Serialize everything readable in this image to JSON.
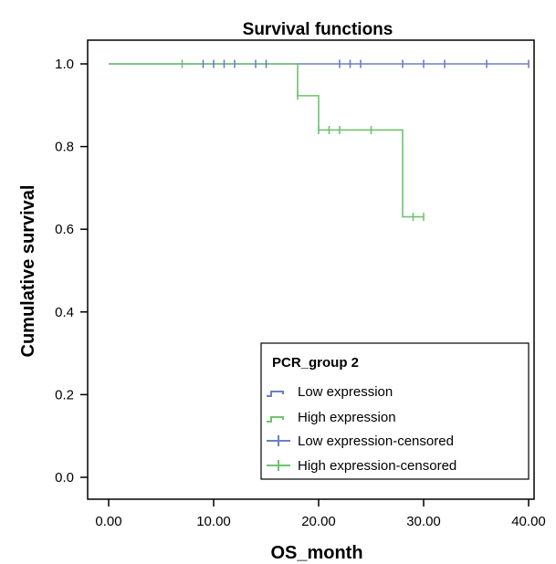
{
  "chart_data": {
    "type": "line",
    "title": "Survival functions",
    "xlabel": "OS_month",
    "ylabel": "Cumulative survival",
    "xlim": [
      0,
      40
    ],
    "ylim": [
      0,
      1
    ],
    "x_ticks": [
      "0.00",
      "10.00",
      "20.00",
      "30.00",
      "40.00"
    ],
    "y_ticks": [
      "0.0",
      "0.2",
      "0.4",
      "0.6",
      "0.8",
      "1.0"
    ],
    "x_tick_values": [
      0,
      10,
      20,
      30,
      40
    ],
    "y_tick_values": [
      0,
      0.2,
      0.4,
      0.6,
      0.8,
      1.0
    ],
    "grid": false,
    "legend": {
      "title": "PCR_group 2",
      "placement": "bottom-right",
      "entries": [
        "Low expression",
        "High expression",
        "Low expression-censored",
        "High expression-censored"
      ]
    },
    "series": [
      {
        "name": "Low expression",
        "color": "#6a80c4",
        "step": true,
        "x": [
          0,
          40
        ],
        "y": [
          1.0,
          1.0
        ],
        "censored": [
          {
            "x": 9,
            "y": 1.0
          },
          {
            "x": 10,
            "y": 1.0
          },
          {
            "x": 11,
            "y": 1.0
          },
          {
            "x": 12,
            "y": 1.0
          },
          {
            "x": 14,
            "y": 1.0
          },
          {
            "x": 15,
            "y": 1.0
          },
          {
            "x": 22,
            "y": 1.0
          },
          {
            "x": 23,
            "y": 1.0
          },
          {
            "x": 24,
            "y": 1.0
          },
          {
            "x": 28,
            "y": 1.0
          },
          {
            "x": 30,
            "y": 1.0
          },
          {
            "x": 32,
            "y": 1.0
          },
          {
            "x": 36,
            "y": 1.0
          },
          {
            "x": 40,
            "y": 1.0
          }
        ]
      },
      {
        "name": "High expression",
        "color": "#6fc36f",
        "step": true,
        "x": [
          0,
          18,
          20,
          28,
          30
        ],
        "y": [
          1.0,
          0.923,
          0.84,
          0.63,
          0.63
        ],
        "censored": [
          {
            "x": 7,
            "y": 1.0
          },
          {
            "x": 18,
            "y": 0.923
          },
          {
            "x": 20,
            "y": 0.84
          },
          {
            "x": 21,
            "y": 0.84
          },
          {
            "x": 22,
            "y": 0.84
          },
          {
            "x": 25,
            "y": 0.84
          },
          {
            "x": 29,
            "y": 0.63
          },
          {
            "x": 30,
            "y": 0.63
          }
        ]
      }
    ]
  }
}
